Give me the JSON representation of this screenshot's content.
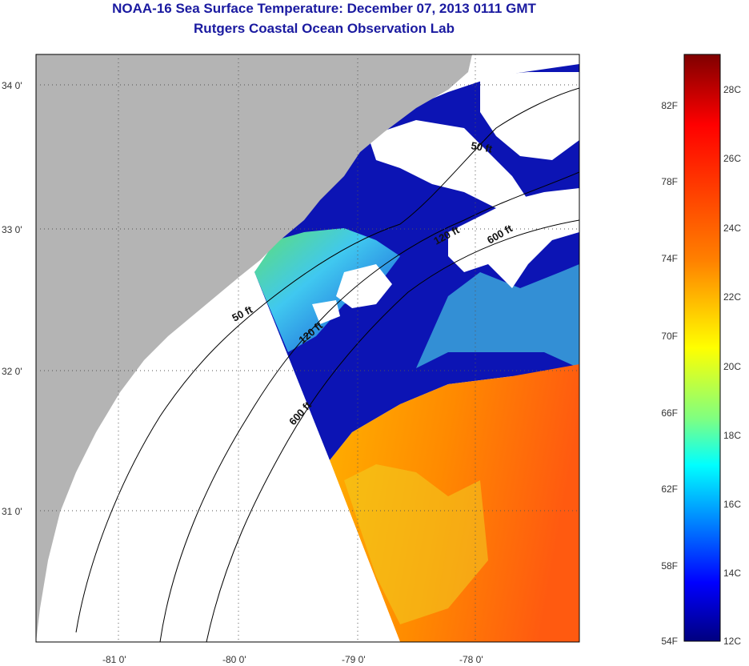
{
  "header": {
    "title": "NOAA-16 Sea Surface Temperature:  December 07, 2013 0111 GMT",
    "subtitle": "Rutgers Coastal Ocean Observation Lab"
  },
  "map": {
    "lon_labels": [
      "-81 0'",
      "-80 0'",
      "-79 0'",
      "-78 0'"
    ],
    "lat_labels": [
      "34 0'",
      "33 0'",
      "32 0'",
      "31 0'"
    ],
    "contours": [
      "50 ft",
      "50 ft",
      "120 ft",
      "120 ft",
      "600 ft",
      "600 ft"
    ]
  },
  "colorbar": {
    "fahrenheit": [
      "82F",
      "78F",
      "74F",
      "70F",
      "66F",
      "62F",
      "58F",
      "54F"
    ],
    "celsius": [
      "28C",
      "26C",
      "24C",
      "22C",
      "20C",
      "18C",
      "16C",
      "14C",
      "12C"
    ],
    "colors": [
      "#7f0000",
      "#ff0000",
      "#ff8000",
      "#ffff00",
      "#80ff80",
      "#00ffff",
      "#0080ff",
      "#0000ff",
      "#00007f"
    ]
  },
  "colors": {
    "land": "#b4b4b4",
    "title": "#1a1aa0"
  }
}
